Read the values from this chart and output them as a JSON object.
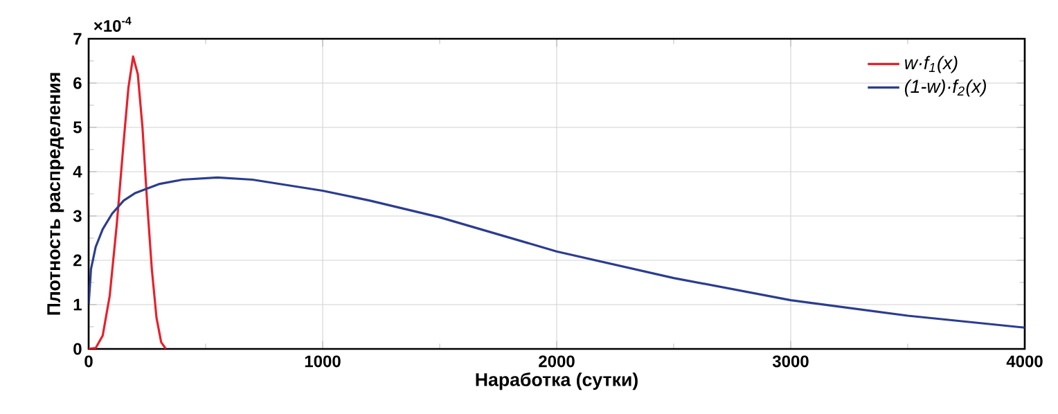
{
  "chart_data": {
    "type": "line",
    "xlabel": "Наработка (сутки)",
    "ylabel": "Плотность распределения",
    "annotations": [
      "×10$^{-4}$"
    ],
    "xlim": [
      0,
      4000
    ],
    "ylim": [
      0,
      7
    ],
    "xticks": [
      0,
      1000,
      2000,
      3000,
      4000
    ],
    "yticks": [
      0,
      1,
      2,
      3,
      4,
      5,
      6,
      7
    ],
    "grid": true,
    "legend": "top right",
    "marker": "none",
    "line_style": "solid",
    "series": [
      {
        "name": "w·f$_{1}$(x)",
        "color": "#e8202a",
        "x": [
          0,
          30,
          60,
          90,
          120,
          150,
          170,
          190,
          210,
          230,
          250,
          270,
          290,
          310,
          330
        ],
        "values": [
          0,
          0.02,
          0.3,
          1.2,
          2.8,
          4.7,
          5.9,
          6.6,
          6.2,
          5.0,
          3.3,
          1.8,
          0.7,
          0.15,
          0
        ]
      },
      {
        "name": "(1-w)·f$_{2}$(x)",
        "color": "#2b3d8f",
        "x": [
          0,
          10,
          30,
          60,
          100,
          150,
          200,
          300,
          400,
          550,
          700,
          1000,
          1200,
          1500,
          2000,
          2500,
          3000,
          3500,
          4000
        ],
        "values": [
          1.0,
          1.8,
          2.3,
          2.7,
          3.05,
          3.35,
          3.52,
          3.72,
          3.82,
          3.87,
          3.82,
          3.57,
          3.35,
          2.97,
          2.2,
          1.6,
          1.1,
          0.75,
          0.48
        ]
      }
    ]
  }
}
